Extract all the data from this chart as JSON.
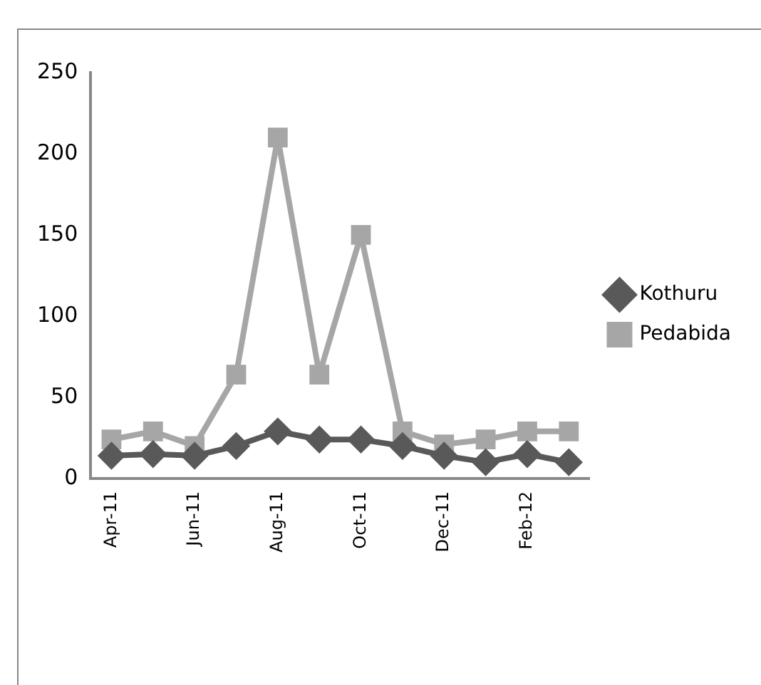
{
  "chart_data": {
    "type": "line",
    "categories": [
      "Apr-11",
      null,
      "Jun-11",
      null,
      "Aug-11",
      null,
      "Oct-11",
      null,
      "Dec-11",
      null,
      "Feb-12",
      null
    ],
    "series": [
      {
        "name": "Kothuru",
        "color": "#595959",
        "marker": "diamond",
        "values": [
          14,
          15,
          14,
          20,
          29,
          24,
          24,
          20,
          14,
          10,
          15,
          10
        ]
      },
      {
        "name": "Pedabida",
        "color": "#a6a6a6",
        "marker": "square",
        "values": [
          24,
          29,
          20,
          64,
          210,
          64,
          150,
          29,
          21,
          24,
          29,
          29
        ]
      }
    ],
    "ylim": [
      0,
      250
    ],
    "yticks": [
      0,
      50,
      100,
      150,
      200,
      250
    ],
    "grid": false,
    "legend": "right",
    "line_style": "solid"
  }
}
